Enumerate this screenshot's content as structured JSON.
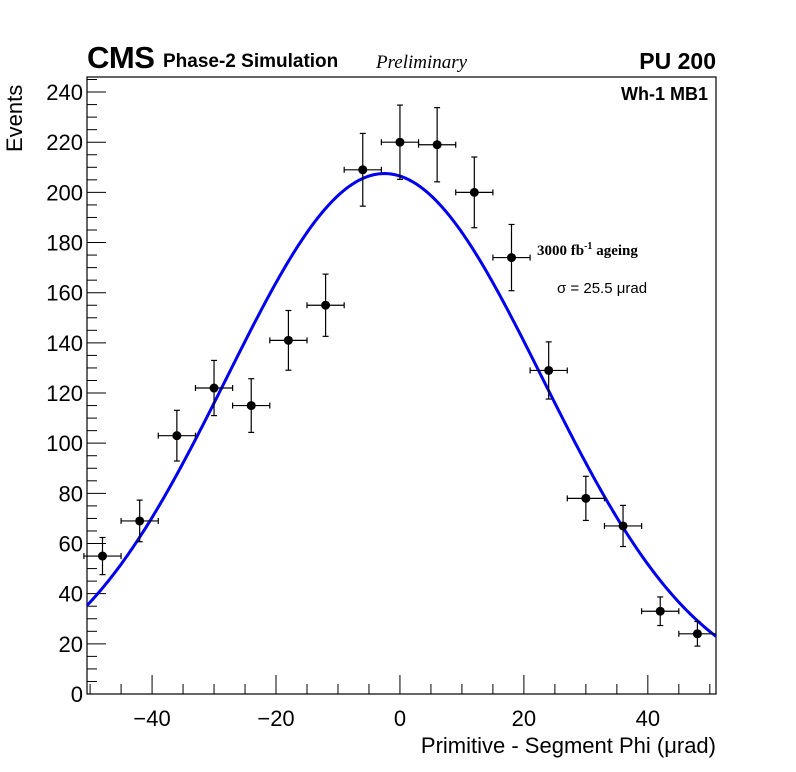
{
  "header": {
    "experiment": "CMS",
    "subtitle": "Phase-2 Simulation",
    "status": "Preliminary",
    "pileup": "PU 200"
  },
  "annotations": {
    "region": "Wh-1 MB1",
    "ageing_prefix": "3000 fb",
    "ageing_sup": "-1",
    "ageing_suffix": " ageing",
    "sigma": "σ = 25.5 μrad"
  },
  "colors": {
    "fit": "#0000ee",
    "points": "#000000"
  },
  "chart_data": {
    "type": "scatter",
    "title": "",
    "xlabel": "Primitive - Segment Phi (μrad)",
    "ylabel": "Events",
    "xlim": [
      -50.5,
      51
    ],
    "ylim": [
      0,
      246
    ],
    "xticks": [
      -40,
      -20,
      0,
      20,
      40
    ],
    "xtick_labels": [
      "−40",
      "−20",
      "0",
      "20",
      "40"
    ],
    "yticks": [
      0,
      20,
      40,
      60,
      80,
      100,
      120,
      140,
      160,
      180,
      200,
      220,
      240
    ],
    "grid": false,
    "series": [
      {
        "name": "Simulation",
        "style": "points-with-errorbars",
        "x": [
          -48,
          -42,
          -36,
          -30,
          -24,
          -18,
          -12,
          -6,
          0,
          6,
          12,
          18,
          24,
          30,
          36,
          42,
          48
        ],
        "y": [
          55,
          69,
          103,
          122,
          115,
          141,
          155,
          209,
          220,
          219,
          200,
          174,
          129,
          78,
          67,
          33,
          24
        ],
        "x_err": [
          3,
          3,
          3,
          3,
          3,
          3,
          3,
          3,
          3,
          3,
          3,
          3,
          3,
          3,
          3,
          3,
          3
        ],
        "y_err": [
          7.4,
          8.3,
          10.1,
          11.0,
          10.7,
          11.9,
          12.4,
          14.5,
          14.8,
          14.8,
          14.1,
          13.2,
          11.4,
          8.8,
          8.2,
          5.7,
          4.9
        ]
      },
      {
        "name": "Gaussian fit",
        "style": "line",
        "function": "gaussian",
        "amplitude": 207.5,
        "mean": -2.5,
        "sigma": 25.5
      }
    ]
  },
  "axes": {
    "ylabel": "Events",
    "xlabel": "Primitive - Segment Phi (μrad)"
  }
}
